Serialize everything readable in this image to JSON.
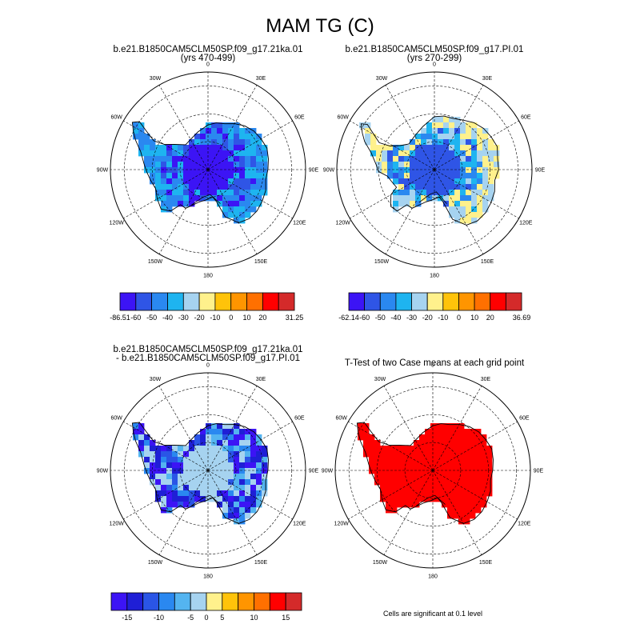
{
  "figure": {
    "title": "MAM TG (C)"
  },
  "chart_data": [
    {
      "type": "heatmap",
      "projection": "south-polar-stereographic",
      "title_line1": "b.e21.B1850CAM5CLM50SP.f09_g17.21ka.01",
      "title_line2": "(yrs 470-499)",
      "field": "TG",
      "units": "C",
      "lon_labels": [
        "0",
        "30E",
        "60E",
        "90E",
        "120E",
        "150E",
        "180",
        "150W",
        "120W",
        "90W",
        "60W",
        "30W"
      ],
      "colorbar": {
        "min_label": "-86.51",
        "max_label": "31.25",
        "levels": [
          "-60",
          "-50",
          "-40",
          "-30",
          "-20",
          "-10",
          "0",
          "10",
          "20"
        ],
        "colors": [
          "#3c14f5",
          "#2f55e6",
          "#2a88f0",
          "#1eb4f0",
          "#a6d3f0",
          "#fff18c",
          "#ffc30a",
          "#ff9500",
          "#ff7000",
          "#ff0000",
          "#d42a2a"
        ]
      },
      "coast": "LGM",
      "dominant_bins": [
        0,
        1,
        2,
        3
      ],
      "margin_bins": [
        2,
        3
      ],
      "interior_bin": 0
    },
    {
      "type": "heatmap",
      "projection": "south-polar-stereographic",
      "title_line1": "b.e21.B1850CAM5CLM50SP.f09_g17.PI.01",
      "title_line2": "(yrs 270-299)",
      "field": "TG",
      "units": "C",
      "lon_labels": [
        "0",
        "30E",
        "60E",
        "90E",
        "120E",
        "150E",
        "180",
        "150W",
        "120W",
        "90W",
        "60W",
        "30W"
      ],
      "colorbar": {
        "min_label": "-62.14",
        "max_label": "36.69",
        "levels": [
          "-60",
          "-50",
          "-40",
          "-30",
          "-20",
          "-10",
          "0",
          "10",
          "20"
        ],
        "colors": [
          "#3c14f5",
          "#2f55e6",
          "#2a88f0",
          "#1eb4f0",
          "#a6d3f0",
          "#fff18c",
          "#ffc30a",
          "#ff9500",
          "#ff7000",
          "#ff0000",
          "#d42a2a"
        ]
      },
      "coast": "PI",
      "dominant_bins": [
        1,
        2,
        3,
        4,
        5
      ],
      "margin_bins": [
        4,
        5
      ],
      "interior_bin": 1
    },
    {
      "type": "heatmap",
      "projection": "south-polar-stereographic",
      "title_line1": "b.e21.B1850CAM5CLM50SP.f09_g17.21ka.01",
      "title_line2": "- b.e21.B1850CAM5CLM50SP.f09_g17.PI.01",
      "field": "TG difference",
      "units": "C",
      "lon_labels": [
        "0",
        "30E",
        "60E",
        "90E",
        "120E",
        "150E",
        "180",
        "150W",
        "120W",
        "90W",
        "60W",
        "30W"
      ],
      "colorbar": {
        "min_label": "",
        "max_label": "",
        "levels": [
          "-15",
          "-10",
          "-5",
          "0",
          "5",
          "10",
          "15"
        ],
        "colors": [
          "#3c14f5",
          "#1f1fd6",
          "#2a55e6",
          "#2a88f0",
          "#54b4f0",
          "#a6d3f0",
          "#fff18c",
          "#ffc30a",
          "#ff9500",
          "#ff7000",
          "#ff0000",
          "#d42a2a"
        ]
      },
      "coast": "LGM",
      "dominant_bins": [
        0,
        1,
        2,
        3,
        4,
        5
      ],
      "margin_bins": [
        0,
        1
      ],
      "interior_bin": 5
    },
    {
      "type": "heatmap",
      "projection": "south-polar-stereographic",
      "title_line1": "T-Test of two Case means at each grid point",
      "title_line2": "",
      "field": "significance mask",
      "units": "",
      "lon_labels": [
        "0",
        "30E",
        "60E",
        "90E",
        "120E",
        "150E",
        "180",
        "150W",
        "120W",
        "90W",
        "60W",
        "30W"
      ],
      "significance_level": 0.1,
      "note": "Cells are significant at 0.1 level",
      "fill_color": "#ff0000",
      "coast": "LGM"
    }
  ]
}
